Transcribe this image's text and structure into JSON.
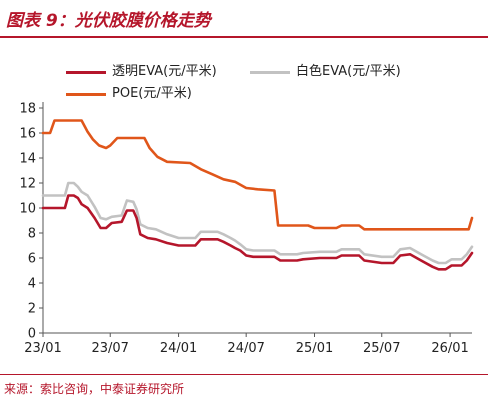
{
  "figure": {
    "title": "图表 9：光伏胶膜价格走势",
    "source": "来源：索比咨询，中泰证券研究所"
  },
  "chart_data": {
    "type": "line",
    "title": "",
    "xlabel": "",
    "ylabel": "",
    "ylim": [
      0,
      18
    ],
    "y_ticks": [
      0,
      2,
      4,
      6,
      8,
      10,
      12,
      14,
      16,
      18
    ],
    "x_range": [
      "2023-01",
      "2026-03"
    ],
    "x_ticks": [
      {
        "date": "2023-01",
        "label": "23/01"
      },
      {
        "date": "2023-07",
        "label": "23/07"
      },
      {
        "date": "2024-01",
        "label": "24/01"
      },
      {
        "date": "2024-07",
        "label": "24/07"
      },
      {
        "date": "2025-01",
        "label": "25/01"
      },
      {
        "date": "2025-07",
        "label": "25/07"
      },
      {
        "date": "2026-01",
        "label": "26/01"
      }
    ],
    "grid": false,
    "legend": "top",
    "series": [
      {
        "name": "透明EVA(元/平米)",
        "color": "#b5162b",
        "points": [
          [
            "2023-01-01",
            10.0
          ],
          [
            "2023-03-01",
            10.0
          ],
          [
            "2023-03-10",
            11.0
          ],
          [
            "2023-03-25",
            11.0
          ],
          [
            "2023-04-05",
            10.8
          ],
          [
            "2023-04-15",
            10.3
          ],
          [
            "2023-05-01",
            10.0
          ],
          [
            "2023-05-20",
            9.2
          ],
          [
            "2023-06-05",
            8.4
          ],
          [
            "2023-06-20",
            8.4
          ],
          [
            "2023-07-05",
            8.8
          ],
          [
            "2023-08-01",
            8.9
          ],
          [
            "2023-08-15",
            9.8
          ],
          [
            "2023-09-01",
            9.8
          ],
          [
            "2023-09-10",
            9.2
          ],
          [
            "2023-09-20",
            7.9
          ],
          [
            "2023-10-10",
            7.6
          ],
          [
            "2023-11-01",
            7.5
          ],
          [
            "2023-12-01",
            7.2
          ],
          [
            "2024-01-01",
            7.0
          ],
          [
            "2024-02-15",
            7.0
          ],
          [
            "2024-03-01",
            7.5
          ],
          [
            "2024-04-15",
            7.5
          ],
          [
            "2024-05-01",
            7.3
          ],
          [
            "2024-05-20",
            7.0
          ],
          [
            "2024-06-01",
            6.8
          ],
          [
            "2024-06-15",
            6.6
          ],
          [
            "2024-07-01",
            6.2
          ],
          [
            "2024-07-20",
            6.1
          ],
          [
            "2024-09-15",
            6.1
          ],
          [
            "2024-10-01",
            5.8
          ],
          [
            "2024-11-15",
            5.8
          ],
          [
            "2024-12-01",
            5.9
          ],
          [
            "2025-01-15",
            6.0
          ],
          [
            "2025-03-01",
            6.0
          ],
          [
            "2025-03-15",
            6.2
          ],
          [
            "2025-05-01",
            6.2
          ],
          [
            "2025-05-15",
            5.8
          ],
          [
            "2025-07-01",
            5.6
          ],
          [
            "2025-08-01",
            5.6
          ],
          [
            "2025-08-20",
            6.2
          ],
          [
            "2025-09-15",
            6.3
          ],
          [
            "2025-10-15",
            5.8
          ],
          [
            "2025-11-15",
            5.3
          ],
          [
            "2025-12-01",
            5.1
          ],
          [
            "2025-12-20",
            5.1
          ],
          [
            "2026-01-05",
            5.4
          ],
          [
            "2026-02-01",
            5.4
          ],
          [
            "2026-02-15",
            5.8
          ],
          [
            "2026-03-01",
            6.4
          ]
        ]
      },
      {
        "name": "白色EVA(元/平米)",
        "color": "#c2c2c2",
        "points": [
          [
            "2023-01-01",
            11.0
          ],
          [
            "2023-03-01",
            11.0
          ],
          [
            "2023-03-10",
            12.0
          ],
          [
            "2023-03-25",
            12.0
          ],
          [
            "2023-04-05",
            11.7
          ],
          [
            "2023-04-15",
            11.3
          ],
          [
            "2023-05-01",
            11.0
          ],
          [
            "2023-05-20",
            10.1
          ],
          [
            "2023-06-05",
            9.2
          ],
          [
            "2023-06-20",
            9.1
          ],
          [
            "2023-07-05",
            9.3
          ],
          [
            "2023-08-01",
            9.4
          ],
          [
            "2023-08-15",
            10.6
          ],
          [
            "2023-09-01",
            10.5
          ],
          [
            "2023-09-10",
            9.9
          ],
          [
            "2023-09-20",
            8.7
          ],
          [
            "2023-10-10",
            8.4
          ],
          [
            "2023-11-01",
            8.3
          ],
          [
            "2023-12-01",
            7.9
          ],
          [
            "2024-01-01",
            7.6
          ],
          [
            "2024-02-15",
            7.6
          ],
          [
            "2024-03-01",
            8.1
          ],
          [
            "2024-04-15",
            8.1
          ],
          [
            "2024-05-01",
            7.9
          ],
          [
            "2024-05-20",
            7.6
          ],
          [
            "2024-06-01",
            7.4
          ],
          [
            "2024-06-15",
            7.1
          ],
          [
            "2024-07-01",
            6.7
          ],
          [
            "2024-07-20",
            6.6
          ],
          [
            "2024-09-15",
            6.6
          ],
          [
            "2024-10-01",
            6.3
          ],
          [
            "2024-11-15",
            6.3
          ],
          [
            "2024-12-01",
            6.4
          ],
          [
            "2025-01-15",
            6.5
          ],
          [
            "2025-03-01",
            6.5
          ],
          [
            "2025-03-15",
            6.7
          ],
          [
            "2025-05-01",
            6.7
          ],
          [
            "2025-05-15",
            6.3
          ],
          [
            "2025-07-01",
            6.1
          ],
          [
            "2025-08-01",
            6.1
          ],
          [
            "2025-08-20",
            6.7
          ],
          [
            "2025-09-15",
            6.8
          ],
          [
            "2025-10-15",
            6.3
          ],
          [
            "2025-11-15",
            5.8
          ],
          [
            "2025-12-01",
            5.6
          ],
          [
            "2025-12-20",
            5.6
          ],
          [
            "2026-01-05",
            5.9
          ],
          [
            "2026-02-01",
            5.9
          ],
          [
            "2026-02-15",
            6.3
          ],
          [
            "2026-03-01",
            6.9
          ]
        ]
      },
      {
        "name": "POE(元/平米)",
        "color": "#e0561a",
        "points": [
          [
            "2023-01-01",
            16.0
          ],
          [
            "2023-01-20",
            16.0
          ],
          [
            "2023-02-01",
            17.0
          ],
          [
            "2023-04-15",
            17.0
          ],
          [
            "2023-05-01",
            16.1
          ],
          [
            "2023-05-15",
            15.5
          ],
          [
            "2023-06-01",
            15.0
          ],
          [
            "2023-06-20",
            14.8
          ],
          [
            "2023-07-01",
            15.0
          ],
          [
            "2023-07-20",
            15.6
          ],
          [
            "2023-10-01",
            15.6
          ],
          [
            "2023-10-15",
            14.8
          ],
          [
            "2023-11-05",
            14.1
          ],
          [
            "2023-12-01",
            13.7
          ],
          [
            "2024-02-01",
            13.6
          ],
          [
            "2024-03-01",
            13.1
          ],
          [
            "2024-04-01",
            12.7
          ],
          [
            "2024-05-01",
            12.3
          ],
          [
            "2024-06-01",
            12.1
          ],
          [
            "2024-07-01",
            11.6
          ],
          [
            "2024-08-01",
            11.5
          ],
          [
            "2024-09-15",
            11.4
          ],
          [
            "2024-09-25",
            8.6
          ],
          [
            "2024-12-15",
            8.6
          ],
          [
            "2025-01-01",
            8.4
          ],
          [
            "2025-03-01",
            8.4
          ],
          [
            "2025-03-15",
            8.6
          ],
          [
            "2025-05-01",
            8.6
          ],
          [
            "2025-05-15",
            8.3
          ],
          [
            "2026-02-20",
            8.3
          ],
          [
            "2026-03-01",
            9.2
          ]
        ]
      }
    ]
  }
}
